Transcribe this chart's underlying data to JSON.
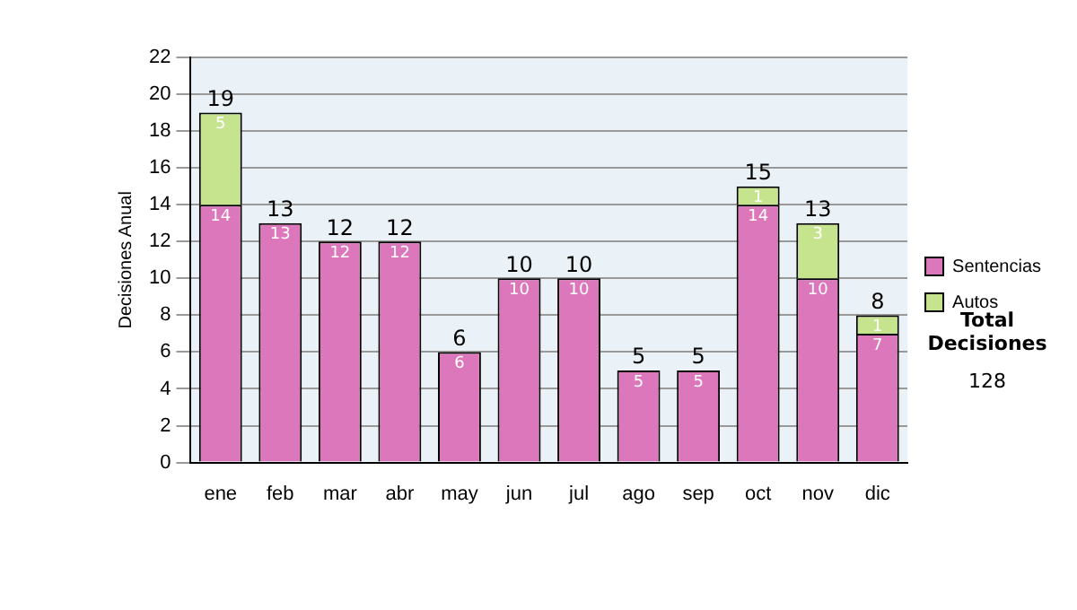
{
  "chart_data": {
    "type": "bar",
    "stacked": true,
    "ylabel": "Decisiones Anual",
    "categories": [
      "ene",
      "feb",
      "mar",
      "abr",
      "may",
      "jun",
      "jul",
      "ago",
      "sep",
      "oct",
      "nov",
      "dic"
    ],
    "series": [
      {
        "name": "Sentencias",
        "color": "#dd77bb",
        "values": [
          14,
          13,
          12,
          12,
          6,
          10,
          10,
          5,
          5,
          14,
          10,
          7
        ],
        "value_labels": [
          "14",
          "13",
          "12",
          "12",
          "6",
          "10",
          "10",
          "5",
          "5",
          "14",
          "10",
          "7"
        ]
      },
      {
        "name": "Autos",
        "color": "#c6e48e",
        "values": [
          5,
          0,
          0,
          0,
          0,
          0,
          0,
          0,
          0,
          1,
          3,
          1
        ],
        "value_labels": [
          "5",
          null,
          null,
          null,
          null,
          null,
          null,
          null,
          null,
          "1",
          "3",
          "1"
        ]
      }
    ],
    "totals": [
      "19",
      "13",
      "12",
      "12",
      "6",
      "10",
      "10",
      "5",
      "5",
      "15",
      "13",
      "8"
    ],
    "ylim": [
      0,
      22
    ],
    "yticks": [
      0,
      2,
      4,
      6,
      8,
      10,
      12,
      14,
      16,
      18,
      20,
      22
    ],
    "grid": "y",
    "legend": "right",
    "annotations": [
      "Total Decisiones",
      "128"
    ]
  }
}
